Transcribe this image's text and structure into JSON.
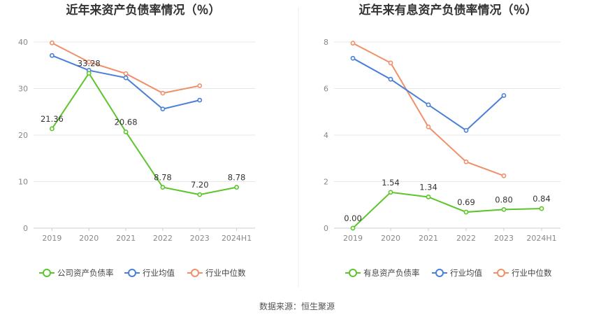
{
  "source": "数据来源：恒生聚源",
  "chart_data": [
    {
      "type": "line",
      "title": "近年来资产负债率情况（％）",
      "categories": [
        "2019",
        "2020",
        "2021",
        "2022",
        "2023",
        "2024H1"
      ],
      "ylim": [
        0,
        40
      ],
      "yticks": [
        "0",
        "10",
        "20",
        "30",
        "40"
      ],
      "grid": true,
      "legend": "bottom",
      "series": [
        {
          "name": "公司资产负债率",
          "color": "#5cc52b",
          "values": [
            21.36,
            33.28,
            20.68,
            8.78,
            7.2,
            8.78
          ],
          "labels": [
            "21.36",
            "33.28",
            "20.68",
            "8.78",
            "7.20",
            "8.78"
          ]
        },
        {
          "name": "行业均值",
          "color": "#4a7fd9",
          "values": [
            37.1,
            33.9,
            32.3,
            25.6,
            27.5,
            null
          ]
        },
        {
          "name": "行业中位数",
          "color": "#f0906a",
          "values": [
            39.8,
            35.7,
            33.2,
            29.0,
            30.6,
            null
          ]
        }
      ]
    },
    {
      "type": "line",
      "title": "近年来有息资产负债率情况（％）",
      "categories": [
        "2019",
        "2020",
        "2021",
        "2022",
        "2023",
        "2024H1"
      ],
      "ylim": [
        0,
        8
      ],
      "yticks": [
        "0",
        "2",
        "4",
        "6",
        "8"
      ],
      "grid": true,
      "legend": "bottom",
      "series": [
        {
          "name": "有息资产负债率",
          "color": "#5cc52b",
          "values": [
            0.0,
            1.54,
            1.34,
            0.69,
            0.8,
            0.84
          ],
          "labels": [
            "0.00",
            "1.54",
            "1.34",
            "0.69",
            "0.80",
            "0.84"
          ]
        },
        {
          "name": "行业均值",
          "color": "#4a7fd9",
          "values": [
            7.3,
            6.4,
            5.3,
            4.2,
            5.7,
            null
          ]
        },
        {
          "name": "行业中位数",
          "color": "#f0906a",
          "values": [
            7.95,
            7.1,
            4.35,
            2.85,
            2.25,
            null
          ]
        }
      ]
    }
  ]
}
